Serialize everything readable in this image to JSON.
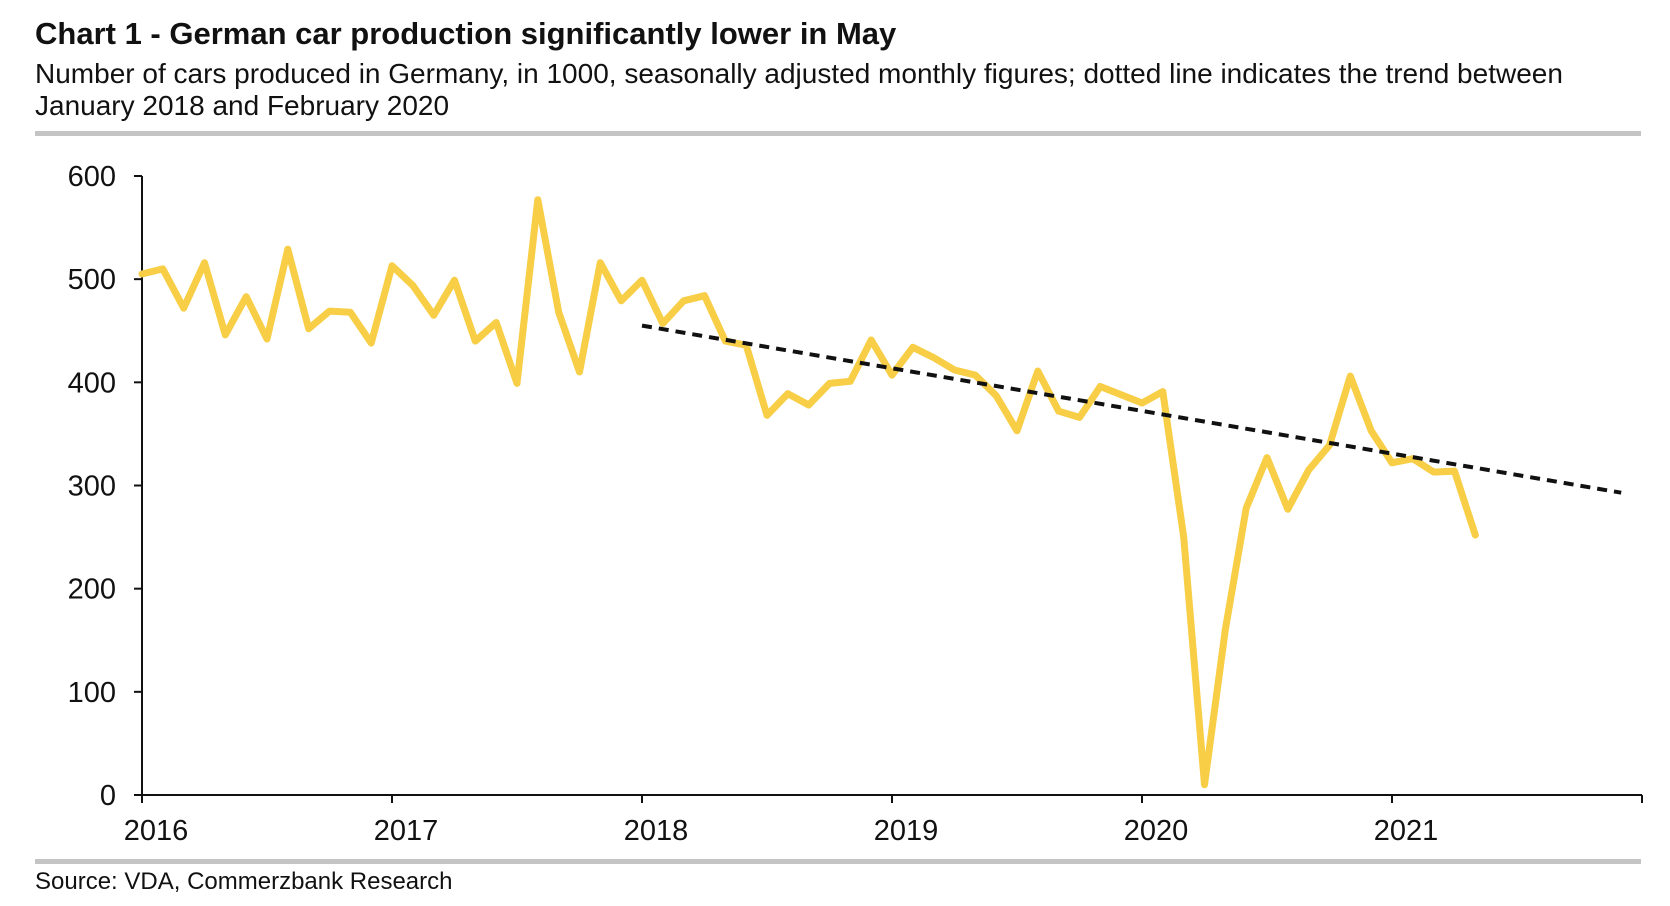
{
  "header": {
    "title": "Chart 1 - German car production significantly lower in May",
    "subtitle": "Number of cars produced in Germany, in 1000, seasonally adjusted monthly figures; dotted line indicates the trend between January 2018 and February 2020"
  },
  "footer": {
    "source": "Source: VDA, Commerzbank Research"
  },
  "chart_data": {
    "type": "line",
    "title": "Chart 1 - German car production significantly lower in May",
    "subtitle": "Number of cars produced in Germany, in 1000, seasonally adjusted monthly figures; dotted line indicates the trend between January 2018 and February 2020",
    "xlabel": "",
    "ylabel": "",
    "x_ticks": [
      "2016",
      "2017",
      "2018",
      "2019",
      "2020",
      "2021"
    ],
    "y_ticks": [
      0,
      100,
      200,
      300,
      400,
      500,
      600
    ],
    "ylim": [
      0,
      600
    ],
    "xlim": [
      2016.0,
      2022.0
    ],
    "grid": false,
    "series": [
      {
        "name": "Car production",
        "color": "#F7CE46",
        "x": [
          2016.0,
          2016.083,
          2016.167,
          2016.25,
          2016.333,
          2016.417,
          2016.5,
          2016.583,
          2016.667,
          2016.75,
          2016.833,
          2016.917,
          2017.0,
          2017.083,
          2017.167,
          2017.25,
          2017.333,
          2017.417,
          2017.5,
          2017.583,
          2017.667,
          2017.75,
          2017.833,
          2017.917,
          2018.0,
          2018.083,
          2018.167,
          2018.25,
          2018.333,
          2018.417,
          2018.5,
          2018.583,
          2018.667,
          2018.75,
          2018.833,
          2018.917,
          2019.0,
          2019.083,
          2019.167,
          2019.25,
          2019.333,
          2019.417,
          2019.5,
          2019.583,
          2019.667,
          2019.75,
          2019.833,
          2019.917,
          2020.0,
          2020.083,
          2020.167,
          2020.25,
          2020.333,
          2020.417,
          2020.5,
          2020.583,
          2020.667,
          2020.75,
          2020.833,
          2020.917,
          2021.0,
          2021.083,
          2021.167,
          2021.25,
          2021.333
        ],
        "values": [
          505,
          510,
          472,
          516,
          446,
          483,
          442,
          529,
          452,
          469,
          468,
          438,
          513,
          494,
          465,
          499,
          440,
          458,
          399,
          577,
          468,
          410,
          516,
          479,
          499,
          457,
          479,
          484,
          440,
          436,
          368,
          389,
          378,
          399,
          401,
          441,
          407,
          434,
          424,
          412,
          407,
          387,
          353,
          411,
          372,
          366,
          396,
          388,
          380,
          391,
          250,
          10,
          160,
          278,
          327,
          277,
          315,
          339,
          406,
          353,
          322,
          326,
          313,
          314,
          252
        ]
      },
      {
        "name": "Trend Jan 2018 - Feb 2020",
        "color": "#111111",
        "style": "dashed",
        "x": [
          2018.0,
          2021.917
        ],
        "values": [
          455,
          293
        ]
      }
    ]
  }
}
